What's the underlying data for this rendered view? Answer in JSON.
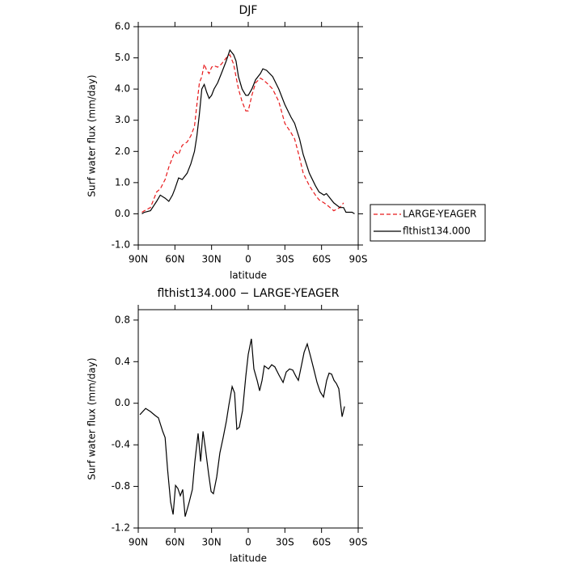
{
  "chart_data": [
    {
      "type": "line",
      "title": "DJF",
      "xlabel": "latitude",
      "ylabel": "Surf water flux (mm/day)",
      "xlim": [
        90,
        -90
      ],
      "ylim": [
        -1,
        6
      ],
      "xticks": [
        {
          "value": 90,
          "label": "90N"
        },
        {
          "value": 60,
          "label": "60N"
        },
        {
          "value": 30,
          "label": "30N"
        },
        0,
        {
          "value": -30,
          "label": "30S"
        },
        {
          "value": -60,
          "label": "60S"
        },
        {
          "value": -90,
          "label": "90S"
        }
      ],
      "yticks": [
        {
          "value": 6,
          "label": "6.0"
        },
        {
          "value": 5,
          "label": "5.0"
        },
        {
          "value": 4,
          "label": "4.0"
        },
        {
          "value": 3,
          "label": "3.0"
        },
        {
          "value": 2,
          "label": "2.0"
        },
        {
          "value": 1,
          "label": "1.0"
        },
        {
          "value": 0,
          "label": "0.0"
        },
        {
          "value": -1,
          "label": "-1.0"
        }
      ],
      "legend": "right",
      "x": [
        87,
        85,
        80,
        75,
        72,
        68,
        65,
        62,
        60,
        57,
        54,
        50,
        47,
        44,
        42,
        40,
        38,
        36,
        34,
        32,
        30,
        28,
        25,
        22,
        18,
        15,
        12,
        10,
        8,
        5,
        2,
        0,
        -3,
        -6,
        -10,
        -12,
        -15,
        -20,
        -25,
        -30,
        -35,
        -38,
        -42,
        -45,
        -50,
        -55,
        -58,
        -62,
        -64,
        -67,
        -70,
        -75,
        -78,
        -80,
        -85,
        -87
      ],
      "series": [
        {
          "name": "LARGE-YEAGER",
          "color": "#e8191b",
          "linestyle": "dashed",
          "values": [
            0.05,
            0.1,
            0.2,
            0.7,
            0.8,
            1.1,
            1.5,
            1.8,
            2.0,
            1.9,
            2.2,
            2.3,
            2.5,
            2.8,
            3.5,
            4.2,
            4.4,
            4.8,
            4.6,
            4.5,
            4.7,
            4.75,
            4.7,
            4.8,
            5.0,
            5.1,
            4.8,
            4.4,
            4.0,
            3.6,
            3.3,
            3.3,
            3.8,
            4.2,
            4.35,
            4.3,
            4.2,
            4.0,
            3.6,
            2.9,
            2.6,
            2.4,
            1.8,
            1.3,
            0.9,
            0.6,
            0.45,
            0.35,
            0.3,
            0.2,
            0.1,
            0.2,
            0.35,
            null,
            null,
            null
          ]
        },
        {
          "name": "flthist134.000",
          "color": "#000000",
          "linestyle": "solid",
          "values": [
            0.0,
            0.05,
            0.1,
            0.4,
            0.6,
            0.5,
            0.4,
            0.6,
            0.8,
            1.15,
            1.1,
            1.3,
            1.6,
            2.0,
            2.5,
            3.2,
            4.0,
            4.15,
            3.9,
            3.7,
            3.8,
            4.0,
            4.2,
            4.5,
            4.9,
            5.25,
            5.1,
            4.9,
            4.4,
            4.0,
            3.8,
            3.8,
            4.0,
            4.3,
            4.5,
            4.65,
            4.6,
            4.4,
            4.0,
            3.5,
            3.1,
            2.9,
            2.4,
            1.9,
            1.3,
            0.9,
            0.7,
            0.6,
            0.65,
            0.5,
            0.35,
            0.2,
            0.2,
            0.05,
            0.05,
            0.0
          ]
        }
      ]
    },
    {
      "type": "line",
      "title": "flthist134.000 − LARGE-YEAGER",
      "xlabel": "latitude",
      "ylabel": "Surf water flux (mm/day)",
      "xlim": [
        90,
        -90
      ],
      "ylim": [
        -1.2,
        0.9
      ],
      "xticks": [
        {
          "value": 90,
          "label": "90N"
        },
        {
          "value": 60,
          "label": "60N"
        },
        {
          "value": 30,
          "label": "30N"
        },
        0,
        {
          "value": -30,
          "label": "30S"
        },
        {
          "value": -60,
          "label": "60S"
        },
        {
          "value": -90,
          "label": "90S"
        }
      ],
      "yticks": [
        0.8,
        0.4,
        {
          "value": 0,
          "label": "0.0"
        },
        -0.4,
        -0.8,
        -1.2
      ],
      "color": "#000000",
      "x": [
        88.7,
        84,
        80,
        76,
        73.5,
        70,
        68,
        66,
        63.5,
        61.5,
        59.5,
        57.6,
        55.6,
        53.6,
        51.6,
        48.3,
        45.7,
        43.7,
        41,
        39,
        37,
        35,
        32.4,
        30.4,
        28.5,
        25.8,
        23.2,
        20.5,
        17.9,
        15.9,
        13.2,
        11.2,
        9.3,
        7.3,
        4.6,
        2,
        0,
        -2.6,
        -4.6,
        -7.3,
        -9.3,
        -11.3,
        -13.2,
        -16.6,
        -19.2,
        -21.8,
        -25.2,
        -28.5,
        -31.1,
        -33.8,
        -36.4,
        -39,
        -41,
        -43.7,
        -45.7,
        -48.3,
        -51,
        -53.6,
        -56.3,
        -58.9,
        -61.6,
        -64.2,
        -66.2,
        -68.2,
        -70.2,
        -72.1,
        -74.1,
        -75.5,
        -76.8,
        -78.8
      ],
      "values": [
        -0.11,
        -0.05,
        -0.08,
        -0.12,
        -0.14,
        -0.27,
        -0.33,
        -0.64,
        -0.95,
        -1.07,
        -0.79,
        -0.82,
        -0.89,
        -0.83,
        -1.09,
        -0.95,
        -0.83,
        -0.56,
        -0.29,
        -0.56,
        -0.27,
        -0.44,
        -0.68,
        -0.85,
        -0.87,
        -0.71,
        -0.48,
        -0.33,
        -0.17,
        -0.02,
        0.16,
        0.1,
        -0.25,
        -0.23,
        -0.07,
        0.26,
        0.47,
        0.62,
        0.33,
        0.22,
        0.12,
        0.22,
        0.36,
        0.33,
        0.37,
        0.35,
        0.27,
        0.2,
        0.3,
        0.33,
        0.32,
        0.26,
        0.22,
        0.37,
        0.49,
        0.57,
        0.45,
        0.33,
        0.2,
        0.11,
        0.06,
        0.22,
        0.29,
        0.28,
        0.22,
        0.19,
        0.14,
        0.0,
        -0.13,
        -0.03
      ]
    }
  ]
}
